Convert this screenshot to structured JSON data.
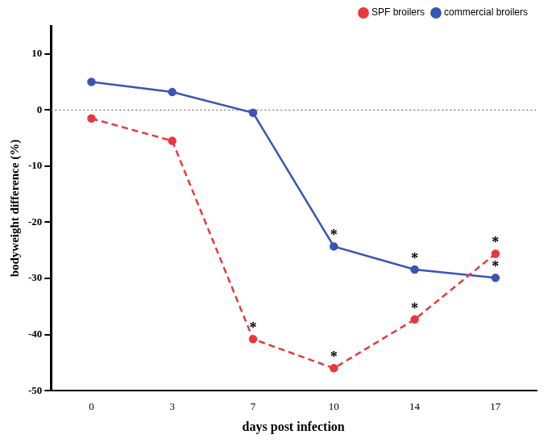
{
  "chart_data": {
    "type": "line",
    "x_label": "days post infection",
    "y_label": "bodyweight difference (%)",
    "categories": [
      0,
      3,
      7,
      10,
      14,
      17
    ],
    "series": [
      {
        "name": "SPF broilers",
        "color": "#e8383d",
        "line_style": "dashed",
        "marker": "circle",
        "values": [
          -1.5,
          -5.5,
          -40.8,
          -46,
          -37.3,
          -25.6
        ]
      },
      {
        "name": "commercial broilers",
        "color": "#3a55b4",
        "line_style": "solid",
        "marker": "circle",
        "values": [
          5,
          3.2,
          -0.5,
          -24.3,
          -28.4,
          -29.9
        ]
      }
    ],
    "annotations": [
      {
        "text": "*",
        "x": 7,
        "series": "SPF broilers"
      },
      {
        "text": "*",
        "x": 10,
        "series": "SPF broilers"
      },
      {
        "text": "*",
        "x": 14,
        "series": "SPF broilers"
      },
      {
        "text": "*",
        "x": 17,
        "series": "SPF broilers"
      },
      {
        "text": "*",
        "x": 10,
        "series": "commercial broilers"
      },
      {
        "text": "*",
        "x": 14,
        "series": "commercial broilers"
      },
      {
        "text": "*",
        "x": 17,
        "series": "commercial broilers"
      }
    ],
    "ylim": [
      -50,
      15
    ],
    "yticks": [
      -50,
      -40,
      -30,
      -20,
      -10,
      0,
      10
    ],
    "grid": false,
    "legend": "top-right"
  }
}
